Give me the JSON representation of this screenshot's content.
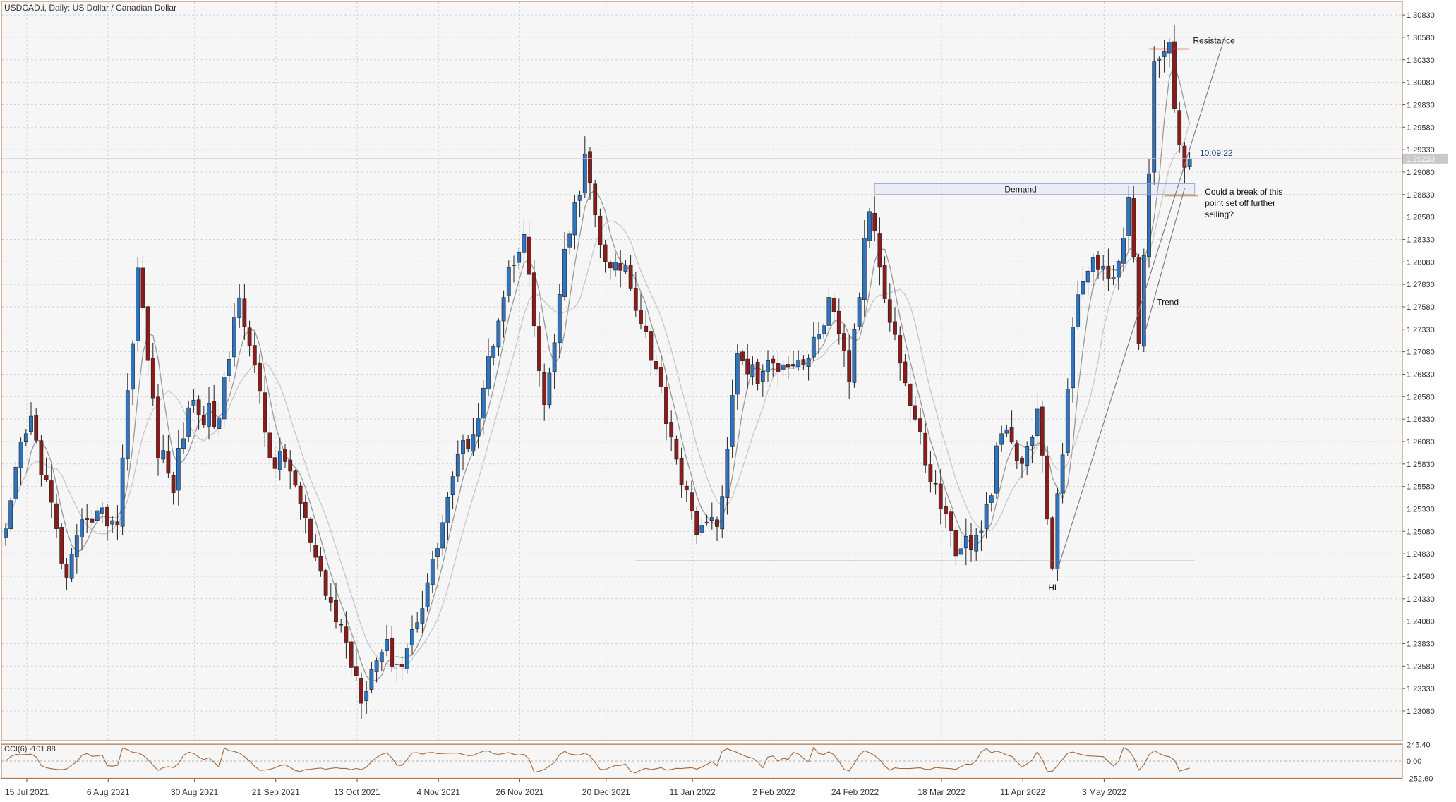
{
  "header": {
    "title": "USDCAD.i, Daily:  US Dollar / Canadian Dollar",
    "cci_label": "CCI(6) -101.88"
  },
  "colors": {
    "bull": "#2f74c0",
    "bear": "#8b1c1c",
    "grid": "#d4d4d4",
    "frame": "#b07850",
    "cci_line": "#a5673a",
    "ma1": "#9a9a9a",
    "ma2": "#c8c8c8",
    "resistance": "#e03030",
    "support": "#808080"
  },
  "chart_data": {
    "type": "candlestick",
    "symbol": "USDCAD.i",
    "timeframe": "Daily",
    "ylim": [
      1.2275,
      1.3098
    ],
    "y_ticks": [
      "1.30830",
      "1.30580",
      "1.30330",
      "1.30080",
      "1.29830",
      "1.29580",
      "1.29330",
      "1.29080",
      "1.28830",
      "1.28580",
      "1.28330",
      "1.28080",
      "1.27830",
      "1.27580",
      "1.27330",
      "1.27080",
      "1.26830",
      "1.26580",
      "1.26330",
      "1.26080",
      "1.25830",
      "1.25580",
      "1.25330",
      "1.25080",
      "1.24830",
      "1.24580",
      "1.24330",
      "1.24080",
      "1.23830",
      "1.23580",
      "1.23330",
      "1.23080"
    ],
    "x_ticks": [
      "15 Jul 2021",
      "6 Aug 2021",
      "30 Aug 2021",
      "21 Sep 2021",
      "13 Oct 2021",
      "4 Nov 2021",
      "26 Nov 2021",
      "20 Dec 2021",
      "11 Jan 2022",
      "2 Feb 2022",
      "24 Feb 2022",
      "18 Mar 2022",
      "11 Apr 2022",
      "3 May 2022"
    ],
    "current_price_label": "1.29230",
    "countdown": "10:09:22",
    "anchors": [
      {
        "i": 0,
        "c": 1.25
      },
      {
        "i": 3,
        "c": 1.26
      },
      {
        "i": 5,
        "c": 1.263
      },
      {
        "i": 8,
        "c": 1.256
      },
      {
        "i": 12,
        "c": 1.245
      },
      {
        "i": 16,
        "c": 1.253
      },
      {
        "i": 22,
        "c": 1.252
      },
      {
        "i": 26,
        "c": 1.28
      },
      {
        "i": 30,
        "c": 1.26
      },
      {
        "i": 33,
        "c": 1.256
      },
      {
        "i": 36,
        "c": 1.265
      },
      {
        "i": 42,
        "c": 1.263
      },
      {
        "i": 46,
        "c": 1.278
      },
      {
        "i": 52,
        "c": 1.259
      },
      {
        "i": 56,
        "c": 1.258
      },
      {
        "i": 62,
        "c": 1.245
      },
      {
        "i": 66,
        "c": 1.24
      },
      {
        "i": 70,
        "c": 1.233
      },
      {
        "i": 74,
        "c": 1.238
      },
      {
        "i": 78,
        "c": 1.236
      },
      {
        "i": 84,
        "c": 1.247
      },
      {
        "i": 88,
        "c": 1.257
      },
      {
        "i": 93,
        "c": 1.264
      },
      {
        "i": 98,
        "c": 1.278
      },
      {
        "i": 102,
        "c": 1.283
      },
      {
        "i": 106,
        "c": 1.264
      },
      {
        "i": 110,
        "c": 1.281
      },
      {
        "i": 114,
        "c": 1.292
      },
      {
        "i": 118,
        "c": 1.28
      },
      {
        "i": 122,
        "c": 1.28
      },
      {
        "i": 126,
        "c": 1.273
      },
      {
        "i": 130,
        "c": 1.264
      },
      {
        "i": 135,
        "c": 1.252
      },
      {
        "i": 140,
        "c": 1.251
      },
      {
        "i": 144,
        "c": 1.27
      },
      {
        "i": 148,
        "c": 1.268
      },
      {
        "i": 153,
        "c": 1.27
      },
      {
        "i": 158,
        "c": 1.27
      },
      {
        "i": 162,
        "c": 1.276
      },
      {
        "i": 166,
        "c": 1.268
      },
      {
        "i": 170,
        "c": 1.287
      },
      {
        "i": 174,
        "c": 1.275
      },
      {
        "i": 178,
        "c": 1.265
      },
      {
        "i": 182,
        "c": 1.257
      },
      {
        "i": 187,
        "c": 1.249
      },
      {
        "i": 192,
        "c": 1.25
      },
      {
        "i": 196,
        "c": 1.262
      },
      {
        "i": 200,
        "c": 1.258
      },
      {
        "i": 203,
        "c": 1.264
      },
      {
        "i": 206,
        "c": 1.247
      },
      {
        "i": 210,
        "c": 1.274
      },
      {
        "i": 214,
        "c": 1.282
      },
      {
        "i": 218,
        "c": 1.278
      },
      {
        "i": 221,
        "c": 1.288
      },
      {
        "i": 223,
        "c": 1.272
      },
      {
        "i": 226,
        "c": 1.302
      },
      {
        "i": 229,
        "c": 1.304
      },
      {
        "i": 231,
        "c": 1.293
      },
      {
        "i": 233,
        "c": 1.2923
      }
    ],
    "annotations": {
      "resistance": {
        "label": "Resistance",
        "price": 1.3045,
        "from_index": 225,
        "to_index": 232
      },
      "demand": {
        "label": "Demand",
        "top": 1.2895,
        "bottom": 1.2883,
        "from_index": 171,
        "to_index": 234
      },
      "note": [
        "Could a break of this",
        "point set off further",
        "selling?"
      ],
      "trend": {
        "label": "Trend",
        "from": {
          "i": 207,
          "p": 1.2465
        },
        "to": {
          "i": 240,
          "p": 1.306
        }
      },
      "trend_inner": {
        "from": {
          "i": 224,
          "p": 1.2725
        },
        "to": {
          "i": 232,
          "p": 1.289
        }
      },
      "support": {
        "price": 1.2475,
        "from_index": 124,
        "to_index": 234
      },
      "hl": {
        "label": "HL",
        "index": 206,
        "price": 1.2455
      }
    },
    "cci": {
      "label": "CCI(6) -101.88",
      "value": -101.88,
      "levels": [
        "245.40",
        "0.00",
        "-252.60"
      ],
      "ylim": [
        -260,
        260
      ]
    }
  }
}
